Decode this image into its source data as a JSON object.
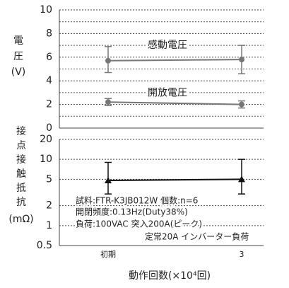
{
  "chart_data": [
    {
      "type": "line",
      "categories": [
        "初期",
        "3"
      ],
      "ylim": [
        0,
        10
      ],
      "yticks": [
        0,
        2,
        4,
        6,
        8,
        10
      ],
      "grid": true,
      "ylabel_lines": [
        "電",
        "圧",
        "(V)"
      ],
      "series": [
        {
          "name": "感動電圧",
          "color": "#777777",
          "values": [
            5.7,
            5.8
          ],
          "low": [
            4.7,
            4.6
          ],
          "high": [
            6.9,
            7.0
          ]
        },
        {
          "name": "開放電圧",
          "color": "#777777",
          "values": [
            2.2,
            2.0
          ],
          "low": [
            1.9,
            1.7
          ],
          "high": [
            2.5,
            2.3
          ]
        }
      ]
    },
    {
      "type": "line",
      "categories": [
        "初期",
        "3"
      ],
      "log_scale": true,
      "ylim": [
        0.5,
        20
      ],
      "yticks": [
        0.5,
        1,
        2,
        5,
        10,
        20
      ],
      "grid": true,
      "ylabel_lines": [
        "接",
        "点",
        "接",
        "触",
        "抵",
        "抗",
        "(mΩ)"
      ],
      "xlabel": "動作回数(×10⁴回)",
      "annotations": [
        "試料:FTR-K3JB012W 個数:n=6",
        "開閉頻度:0.13Hz(Duty38%)",
        "負荷:100VAC 突入200A(ピーク)",
        "定常20A インバーター負荷"
      ],
      "series": [
        {
          "color": "#111111",
          "values": [
            4.8,
            5.0
          ],
          "low": [
            3.0,
            3.0
          ],
          "high": [
            9.0,
            10.0
          ]
        }
      ]
    }
  ]
}
